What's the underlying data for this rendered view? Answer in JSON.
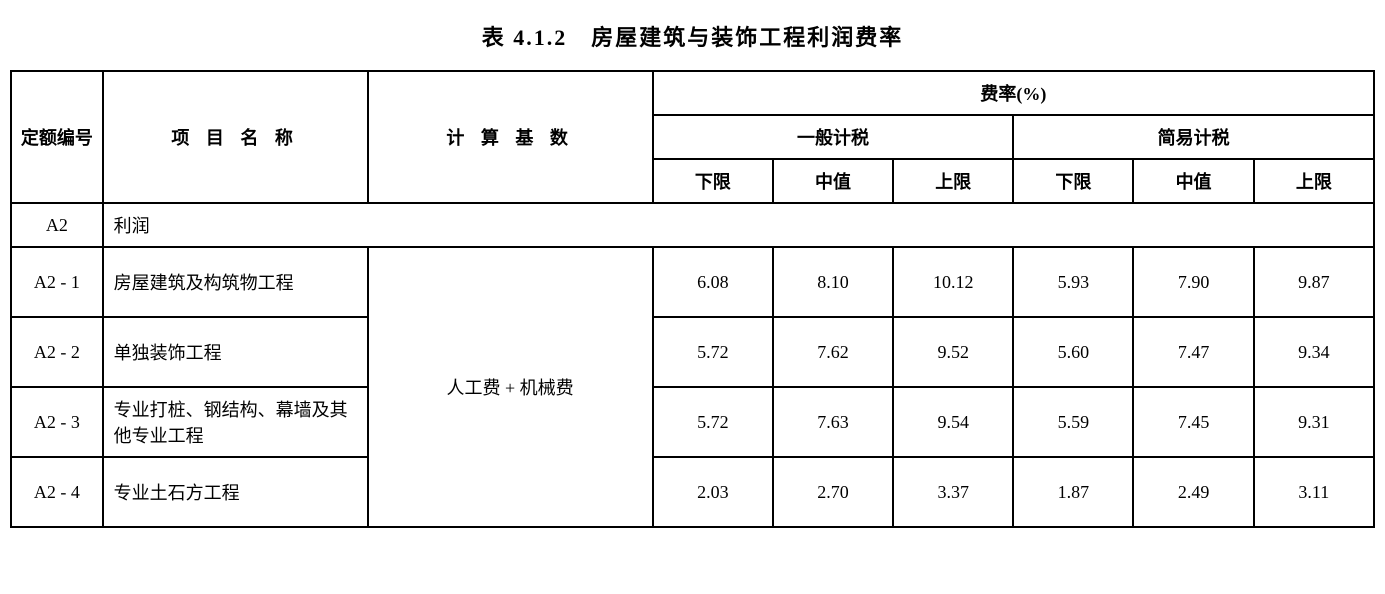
{
  "title": "表 4.1.2　房屋建筑与装饰工程利润费率",
  "headers": {
    "code": "定额编号",
    "name": "项 目 名 称",
    "base": "计 算 基 数",
    "rate_group": "费率(%)",
    "tax_general": "一般计税",
    "tax_simple": "简易计税",
    "lower": "下限",
    "middle": "中值",
    "upper": "上限"
  },
  "section": {
    "code": "A2",
    "label": "利润"
  },
  "calc_base": "人工费 + 机械费",
  "rows": [
    {
      "code": "A2 - 1",
      "name": "房屋建筑及构筑物工程",
      "general": {
        "lower": "6.08",
        "middle": "8.10",
        "upper": "10.12"
      },
      "simple": {
        "lower": "5.93",
        "middle": "7.90",
        "upper": "9.87"
      }
    },
    {
      "code": "A2 - 2",
      "name": "单独装饰工程",
      "general": {
        "lower": "5.72",
        "middle": "7.62",
        "upper": "9.52"
      },
      "simple": {
        "lower": "5.60",
        "middle": "7.47",
        "upper": "9.34"
      }
    },
    {
      "code": "A2 - 3",
      "name": "专业打桩、钢结构、幕墙及其他专业工程",
      "general": {
        "lower": "5.72",
        "middle": "7.63",
        "upper": "9.54"
      },
      "simple": {
        "lower": "5.59",
        "middle": "7.45",
        "upper": "9.31"
      }
    },
    {
      "code": "A2 - 4",
      "name": "专业土石方工程",
      "general": {
        "lower": "2.03",
        "middle": "2.70",
        "upper": "3.37"
      },
      "simple": {
        "lower": "1.87",
        "middle": "2.49",
        "upper": "3.11"
      }
    }
  ]
}
